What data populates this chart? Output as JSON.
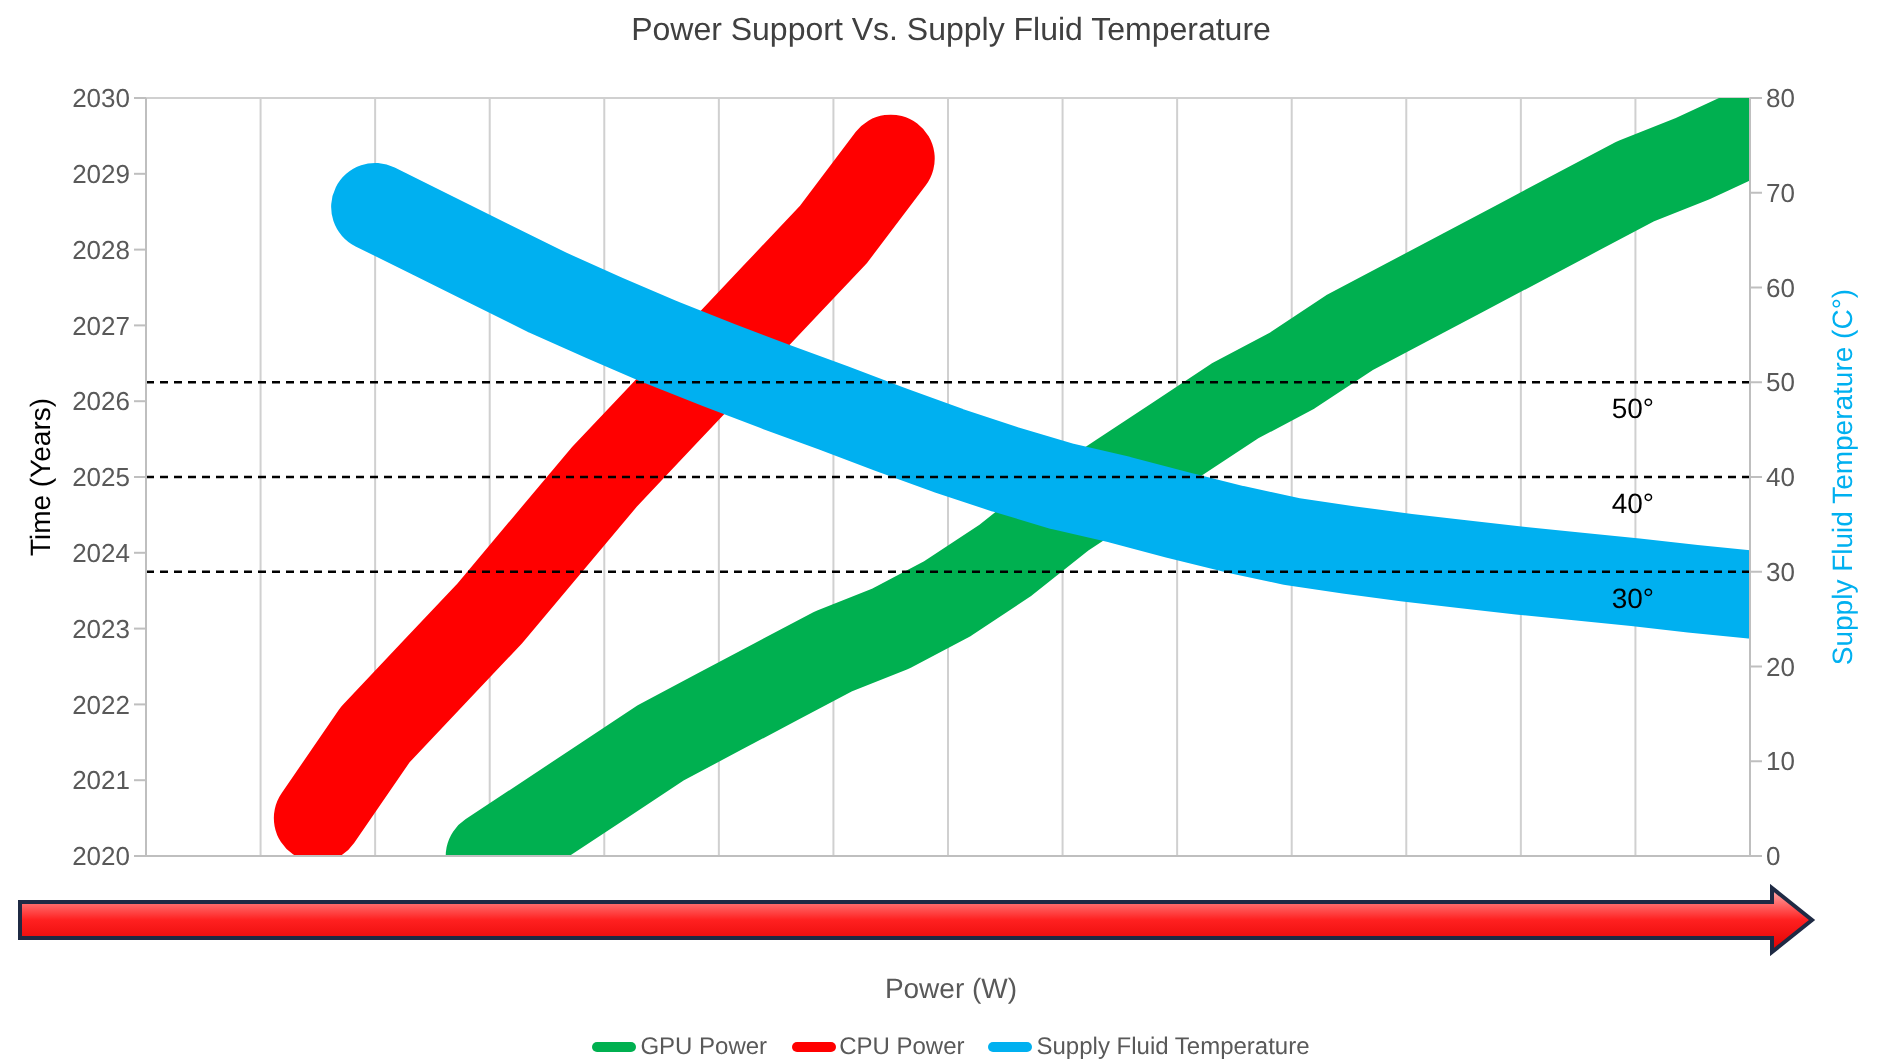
{
  "chart_data": {
    "type": "line",
    "title": "Power Support Vs. Supply Fluid Temperature",
    "xlabel": "Power (W)",
    "ylabel": "Time (Years)",
    "y2label": "Supply Fluid Temperature (C°)",
    "categories": [
      null,
      null,
      null,
      null,
      null,
      null,
      null,
      null,
      null,
      null,
      null,
      null,
      null,
      null,
      null,
      null,
      null,
      null,
      null,
      null,
      null,
      null,
      null,
      null,
      null,
      null,
      null,
      null,
      null
    ],
    "series": [
      {
        "name": "GPU Power",
        "color": "#00b050",
        "values": [
          null,
          null,
          null,
          null,
          null,
          null,
          2020.0,
          2020.5,
          2021.0,
          2021.5,
          2021.9,
          2022.3,
          2022.7,
          2023.0,
          2023.4,
          2023.9,
          2024.5,
          2025.0,
          2025.5,
          2026.0,
          2026.4,
          2026.9,
          2027.3,
          2027.7,
          2028.1,
          2028.5,
          2028.9,
          2029.2,
          2029.55
        ]
      },
      {
        "name": "CPU Power",
        "color": "#ff0000",
        "values": [
          null,
          null,
          null,
          2020.5,
          2021.6,
          2022.4,
          2023.2,
          2024.1,
          2025.0,
          2025.8,
          2026.6,
          2027.4,
          2028.2,
          2029.2,
          null,
          null,
          null,
          null,
          null,
          null,
          null,
          null,
          null,
          null,
          null,
          null,
          null,
          null,
          null
        ]
      },
      {
        "name": "Supply Fluid Temperature",
        "color": "#00b0f0",
        "axis": "y2",
        "values": [
          null,
          null,
          null,
          null,
          68.5,
          65.5,
          62.5,
          59.5,
          56.8,
          54.2,
          51.8,
          49.5,
          47.3,
          45.0,
          42.8,
          40.8,
          39.0,
          37.6,
          36.0,
          34.5,
          33.2,
          32.3,
          31.5,
          30.8,
          30.1,
          29.5,
          28.9,
          28.2,
          27.6
        ]
      }
    ],
    "ylim": [
      2020,
      2030
    ],
    "yticks": [
      2020,
      2021,
      2022,
      2023,
      2024,
      2025,
      2026,
      2027,
      2028,
      2029,
      2030
    ],
    "y2lim": [
      0,
      80
    ],
    "y2ticks": [
      0,
      10,
      20,
      30,
      40,
      50,
      60,
      70,
      80
    ],
    "ref_lines": [
      {
        "axis": "y2",
        "value": 50,
        "label": "50°",
        "color": "#000000",
        "line_style": "dashed"
      },
      {
        "axis": "y2",
        "value": 40,
        "label": "40°",
        "color": "#000000",
        "line_style": "dashed"
      },
      {
        "axis": "y2",
        "value": 30,
        "label": "30°",
        "color": "#000000",
        "line_style": "dashed"
      }
    ],
    "grid": true,
    "legend": "bottom",
    "tick_labels": "y",
    "marker": "none",
    "line_style": "solid"
  }
}
